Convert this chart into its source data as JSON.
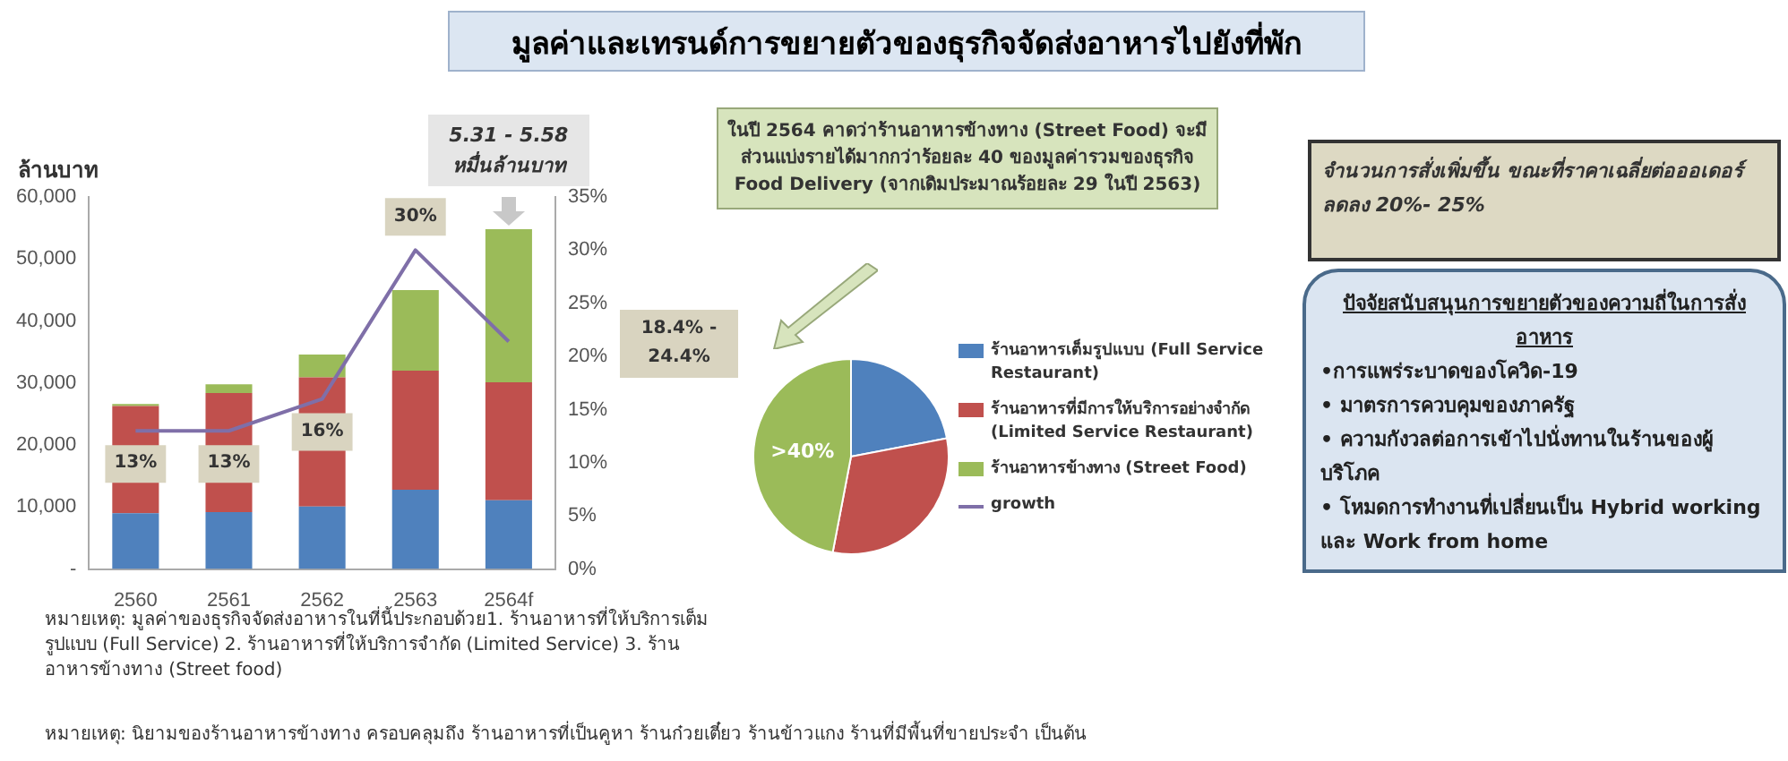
{
  "chart_data": [
    {
      "type": "bar",
      "title": "มูลค่าและเทรนด์การขยายตัวของธุรกิจจัดส่งอาหารไปยังที่พัก",
      "ylabel": "ล้านบาท",
      "categories": [
        "2560",
        "2561",
        "2562",
        "2563",
        "2564f"
      ],
      "stacked": true,
      "legend": "right",
      "grid": false,
      "marker": "none",
      "series": [
        {
          "name": "ร้านอาหารเต็มรูปแบบ (Full Service Restaurant)",
          "color": "#4f81bd",
          "values": [
            9000,
            9200,
            10100,
            12800,
            11100
          ]
        },
        {
          "name": "ร้านอาหารที่มีการให้บริการอย่างจำกัด (Limited Service Restaurant)",
          "color": "#c0504d",
          "values": [
            17300,
            19200,
            20800,
            19200,
            19000
          ]
        },
        {
          "name": "ร้านอาหารข้างทาง (Street Food)",
          "color": "#9bbb59",
          "values": [
            300,
            1400,
            3700,
            13000,
            24700
          ]
        },
        {
          "name": "growth",
          "type": "line",
          "axis": "y2",
          "color": "#7f6fa8",
          "values": [
            13,
            13,
            16,
            30,
            21.4
          ],
          "value_labels": [
            "13%",
            "13%",
            "16%",
            "30%",
            null
          ]
        }
      ],
      "ylim": [
        0,
        60000
      ],
      "yticks": [
        {
          "value": 0,
          "label": "-"
        },
        {
          "value": 10000,
          "label": "10,000"
        },
        {
          "value": 20000,
          "label": "20,000"
        },
        {
          "value": 30000,
          "label": "30,000"
        },
        {
          "value": 40000,
          "label": "40,000"
        },
        {
          "value": 50000,
          "label": "50,000"
        },
        {
          "value": 60000,
          "label": "60,000"
        }
      ],
      "y2lim": [
        0,
        35
      ],
      "y2ticks": [
        {
          "value": 0,
          "label": "0%"
        },
        {
          "value": 5,
          "label": "5%"
        },
        {
          "value": 10,
          "label": "10%"
        },
        {
          "value": 15,
          "label": "15%"
        },
        {
          "value": 20,
          "label": "20%"
        },
        {
          "value": 25,
          "label": "25%"
        },
        {
          "value": 30,
          "label": "30%"
        },
        {
          "value": 35,
          "label": "35%"
        }
      ],
      "annotations": [
        {
          "text": "5.31 - 5.58 หมื่นล้านบาท",
          "x": "2564f",
          "y": 54800
        },
        "18.4% - 24.4%",
        "หมายเหตุ: มูลค่าของธุรกิจจัดส่งอาหารในที่นี้ประกอบด้วย1. ร้านอาหารที่ให้บริการเต็มรูปแบบ (Full Service) 2. ร้านอาหารที่ให้บริการจำกัด (Limited Service) 3. ร้านอาหารข้างทาง (Street food)",
        "หมายเหตุ: นิยามของร้านอาหารข้างทาง ครอบคลุมถึง ร้านอาหารที่เป็นคูหา ร้านก๋วยเตี๋ยว ร้านข้าวแกง ร้านที่มีพื้นที่ขายประจำ เป็นต้น"
      ]
    },
    {
      "type": "pie",
      "categories": [
        null,
        null,
        null
      ],
      "values": [
        22,
        31,
        47
      ],
      "colors": [
        "#4f81bd",
        "#c0504d",
        "#9bbb59"
      ],
      "value_labels": [
        null,
        null,
        ">40%"
      ],
      "annotations": [
        "ในปี 2564 คาดว่าร้านอาหารข้างทาง (Street Food) จะมีส่วนแบ่งรายได้มากกว่าร้อยละ 40 ของมูลค่ารวมของธุรกิจ Food Delivery (จากเดิมประมาณร้อยละ 29 ในปี 2563)"
      ]
    },
    {
      "type": "other",
      "annotations": [
        "จำนวนการสั่งเพิ่มขึ้น ขณะที่ราคาเฉลี่ยต่อออเดอร์ลดลง 20%- 25%",
        "ปัจจัยสนับสนุนการขยายตัวของความถี่ในการสั่งอาหาร",
        "•การแพร่ระบาดของโควิด-19",
        "• มาตรการควบคุมของภาครัฐ",
        "• ความกังวลต่อการเข้าไปนั่งทานในร้านของผู้บริโภค",
        "• โหมดการทำงานที่เปลี่ยนเป็น Hybrid working และ Work from home"
      ]
    }
  ]
}
